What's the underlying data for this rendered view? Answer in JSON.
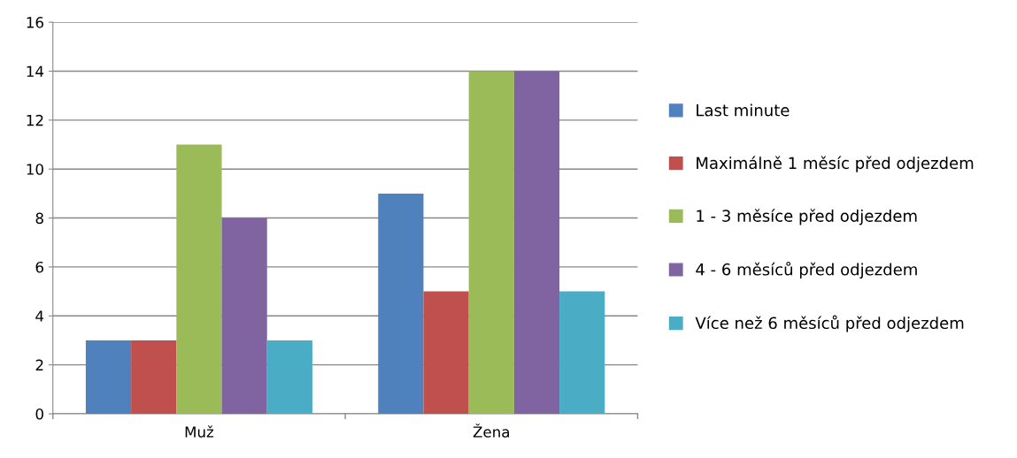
{
  "chart_data": {
    "type": "bar",
    "categories": [
      "Muž",
      "Žena"
    ],
    "series": [
      {
        "name": "Last minute",
        "color": "#4f81bd",
        "values": [
          3,
          9
        ]
      },
      {
        "name": "Maximálně 1 měsíc před odjezdem",
        "color": "#c0504d",
        "values": [
          3,
          5
        ]
      },
      {
        "name": "1 - 3 měsíce před odjezdem",
        "color": "#9bbb59",
        "values": [
          11,
          14
        ]
      },
      {
        "name": "4 - 6 měsíců před odjezdem",
        "color": "#8064a2",
        "values": [
          8,
          14
        ]
      },
      {
        "name": "Více než 6 měsíců před odjezdem",
        "color": "#4bacc6",
        "values": [
          3,
          5
        ]
      }
    ],
    "ylim": [
      0,
      16
    ],
    "yticks": [
      0,
      2,
      4,
      6,
      8,
      10,
      12,
      14,
      16
    ],
    "grid": "y",
    "legend": "right"
  }
}
